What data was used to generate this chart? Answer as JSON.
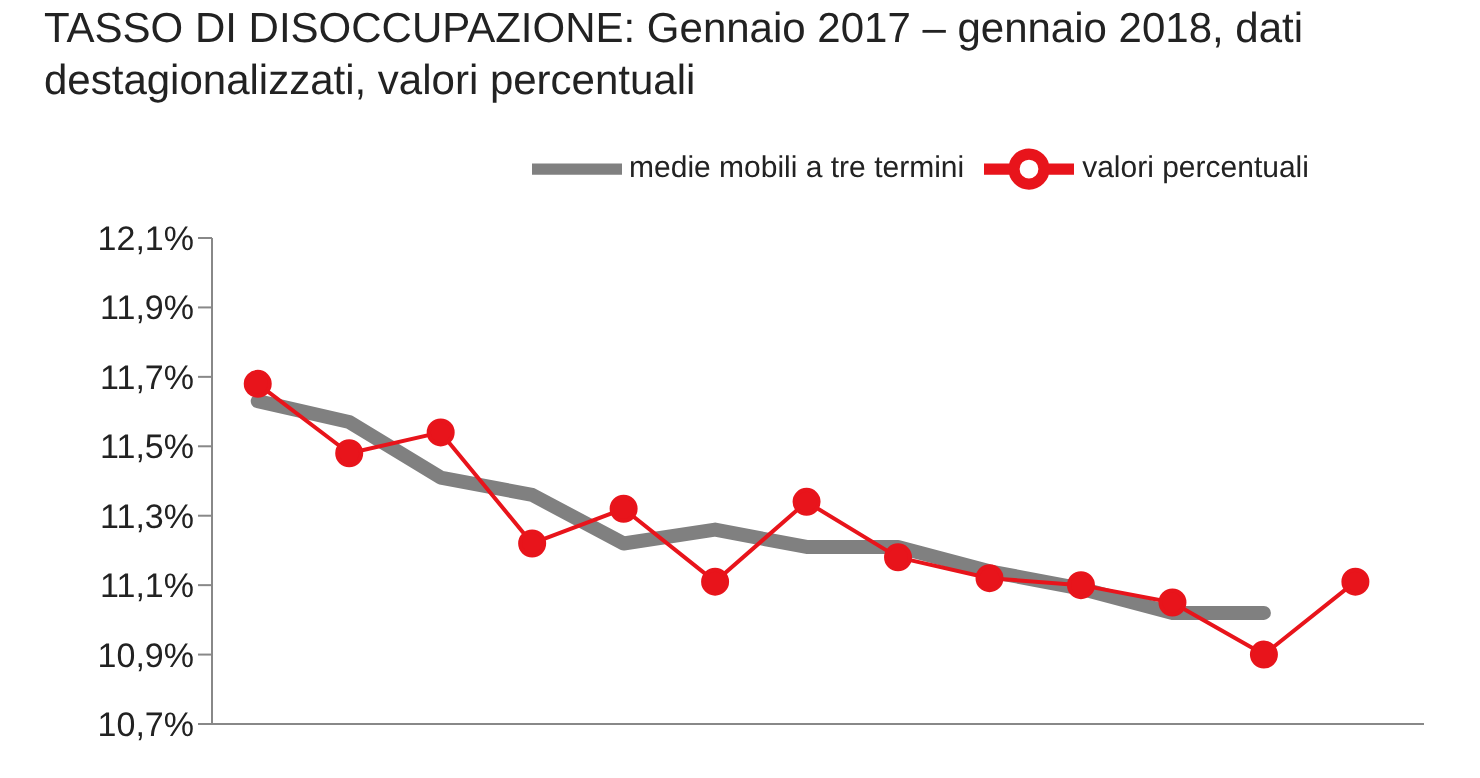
{
  "chart_data": {
    "type": "line",
    "title": "TASSO DI DISOCCUPAZIONE: Gennaio 2017 – gennaio 2018, dati destagionalizzati, valori percentuali",
    "categories": [
      null,
      null,
      null,
      null,
      null,
      null,
      null,
      null,
      null,
      null,
      null,
      null,
      null
    ],
    "series": [
      {
        "name": "medie mobili a tre termini",
        "color": "#808080",
        "marker": "none",
        "values": [
          11.63,
          11.57,
          11.41,
          11.36,
          11.22,
          11.26,
          11.21,
          11.21,
          11.14,
          11.09,
          11.02,
          11.02,
          null
        ]
      },
      {
        "name": "valori percentuali",
        "color": "#e8141b",
        "marker": "circle",
        "values": [
          11.68,
          11.48,
          11.54,
          11.22,
          11.32,
          11.11,
          11.34,
          11.18,
          11.12,
          11.1,
          11.05,
          10.9,
          11.11
        ]
      }
    ],
    "ylim": [
      10.7,
      12.1
    ],
    "yticks": [
      {
        "value": 10.7,
        "label": "10,7%"
      },
      {
        "value": 10.9,
        "label": "10,9%"
      },
      {
        "value": 11.1,
        "label": "11,1%"
      },
      {
        "value": 11.3,
        "label": "11,3%"
      },
      {
        "value": 11.5,
        "label": "11,5%"
      },
      {
        "value": 11.7,
        "label": "11,7%"
      },
      {
        "value": 11.9,
        "label": "11,9%"
      },
      {
        "value": 12.1,
        "label": "12,1%"
      }
    ],
    "grid": false,
    "legend": "top",
    "tick_labels": "y"
  }
}
